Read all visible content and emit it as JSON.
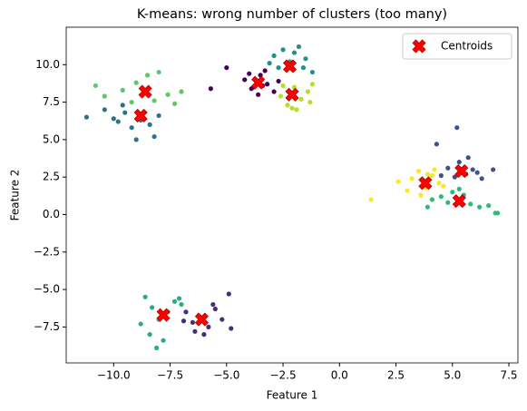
{
  "chart_data": {
    "type": "scatter",
    "title": "K-means: wrong number of clusters (too many)",
    "x_label": "Feature 1",
    "y_label": "Feature 2",
    "xlim": [
      -12.1,
      7.9
    ],
    "ylim": [
      -9.9,
      12.5
    ],
    "xticks": [
      {
        "value": -10,
        "label": "−10.0"
      },
      {
        "value": -7.5,
        "label": "−7.5"
      },
      {
        "value": -5,
        "label": "−5.0"
      },
      {
        "value": -2.5,
        "label": "−2.5"
      },
      {
        "value": 0,
        "label": "0.0"
      },
      {
        "value": 2.5,
        "label": "2.5"
      },
      {
        "value": 5,
        "label": "5.0"
      },
      {
        "value": 7.5,
        "label": "7.5"
      }
    ],
    "yticks": [
      {
        "value": -7.5,
        "label": "−7.5"
      },
      {
        "value": -5,
        "label": "−5.0"
      },
      {
        "value": -2.5,
        "label": "−2.5"
      },
      {
        "value": 0,
        "label": "0.0"
      },
      {
        "value": 2.5,
        "label": "2.5"
      },
      {
        "value": 5,
        "label": "5.0"
      },
      {
        "value": 7.5,
        "label": "7.5"
      },
      {
        "value": 10,
        "label": "10.0"
      }
    ],
    "legend_position": "upper right",
    "series": [
      {
        "color": "#440154",
        "x": [
          -4.2,
          -3.8,
          -3.5,
          -3.2,
          -2.9,
          -3.6,
          -4.0,
          -3.3,
          -2.7,
          -3.9,
          -5.0,
          -3.4,
          -5.7
        ],
        "values": [
          9.0,
          8.5,
          9.3,
          8.7,
          8.2,
          8.0,
          9.4,
          9.6,
          8.9,
          8.4,
          9.8,
          8.6,
          8.4
        ]
      },
      {
        "color": "#472d7b",
        "x": [
          -6.8,
          -6.5,
          -6.2,
          -5.8,
          -5.5,
          -6.0,
          -5.2,
          -4.8,
          -6.4,
          -5.6,
          -4.9,
          -6.9
        ],
        "values": [
          -6.5,
          -7.2,
          -6.8,
          -7.5,
          -6.3,
          -8.0,
          -7.0,
          -7.6,
          -7.8,
          -6.0,
          -5.3,
          -7.1
        ]
      },
      {
        "color": "#3b528b",
        "x": [
          4.5,
          4.8,
          5.1,
          5.3,
          5.6,
          5.9,
          6.3,
          6.8,
          5.2,
          5.7,
          6.1,
          4.3
        ],
        "values": [
          2.6,
          3.1,
          2.5,
          3.5,
          2.7,
          3.0,
          2.4,
          3.0,
          5.8,
          3.8,
          2.8,
          4.7
        ]
      },
      {
        "color": "#2c728e",
        "x": [
          -11.2,
          -10.4,
          -9.8,
          -9.5,
          -9.2,
          -8.8,
          -8.4,
          -8.0,
          -9.0,
          -10.0,
          -8.2,
          -9.6
        ],
        "values": [
          6.5,
          7.0,
          6.2,
          6.8,
          5.8,
          6.3,
          6.0,
          6.6,
          5.0,
          6.4,
          5.2,
          7.3
        ]
      },
      {
        "color": "#21918c",
        "x": [
          -2.9,
          -2.5,
          -2.2,
          -1.8,
          -1.5,
          -1.2,
          -2.7,
          -2.0,
          -3.1,
          -1.6
        ],
        "values": [
          10.6,
          11.0,
          10.2,
          11.2,
          10.4,
          9.5,
          9.8,
          10.8,
          10.1,
          9.8
        ]
      },
      {
        "color": "#28ae80",
        "x": [
          -8.6,
          -8.3,
          -8.0,
          -7.6,
          -7.3,
          -7.0,
          -8.8,
          -7.8,
          -8.4,
          -7.1,
          -8.1
        ],
        "values": [
          -5.5,
          -6.2,
          -7.0,
          -6.5,
          -5.8,
          -6.0,
          -7.3,
          -8.4,
          -8.0,
          -5.6,
          -8.9
        ]
      },
      {
        "color": "#35b779",
        "x": [
          4.5,
          4.8,
          5.0,
          5.5,
          5.8,
          6.2,
          6.6,
          6.9,
          7.0,
          4.1,
          5.3,
          3.9
        ],
        "values": [
          1.2,
          0.8,
          1.5,
          1.3,
          0.7,
          0.5,
          0.6,
          0.1,
          0.1,
          1.0,
          1.7,
          0.5
        ]
      },
      {
        "color": "#5ec962",
        "x": [
          -10.8,
          -10.4,
          -9.6,
          -9.0,
          -8.5,
          -8.0,
          -7.6,
          -7.0,
          -8.2,
          -9.2,
          -7.3
        ],
        "values": [
          8.6,
          7.9,
          8.3,
          8.8,
          9.3,
          9.5,
          8.0,
          8.2,
          7.6,
          7.5,
          7.4
        ]
      },
      {
        "color": "#b5de2b",
        "x": [
          -2.6,
          -2.3,
          -2.0,
          -1.7,
          -1.4,
          -2.1,
          -1.2,
          -2.5,
          -1.9,
          -1.3
        ],
        "values": [
          7.9,
          7.3,
          8.5,
          7.7,
          8.2,
          7.1,
          8.7,
          8.6,
          7.0,
          7.5
        ]
      },
      {
        "color": "#fde725",
        "x": [
          3.2,
          3.5,
          3.8,
          4.1,
          4.4,
          3.0,
          2.6,
          4.2,
          3.6,
          4.6,
          1.4,
          3.9
        ],
        "values": [
          2.4,
          2.9,
          1.8,
          2.6,
          2.1,
          1.6,
          2.2,
          3.0,
          1.3,
          1.9,
          1.0,
          2.7
        ]
      },
      {
        "name": "Centroids",
        "color": "#ff0000",
        "marker": "X",
        "x": [
          -8.8,
          -8.6,
          -3.6,
          -2.2,
          -2.1,
          3.8,
          5.4,
          5.3,
          -7.8,
          -6.1
        ],
        "values": [
          6.6,
          8.2,
          8.8,
          9.9,
          8.0,
          2.1,
          2.9,
          0.9,
          -6.7,
          -7.0
        ]
      }
    ]
  }
}
